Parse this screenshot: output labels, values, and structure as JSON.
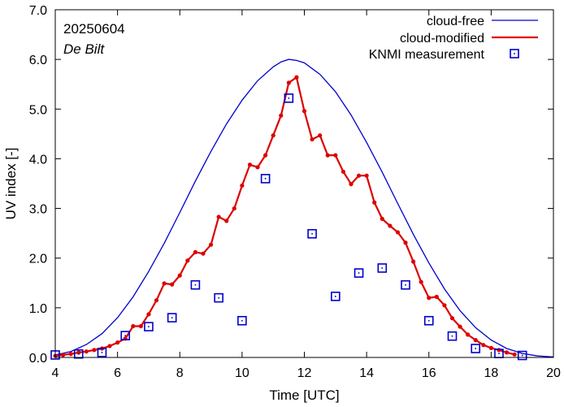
{
  "chart_data": {
    "type": "line",
    "xlabel": "Time  [UTC]",
    "ylabel": "UV index  [-]",
    "xlim": [
      4,
      20
    ],
    "ylim": [
      0,
      7
    ],
    "x_ticks": [
      4,
      6,
      8,
      10,
      12,
      14,
      16,
      18,
      20
    ],
    "y_ticks": [
      0,
      1,
      2,
      3,
      4,
      5,
      6,
      7
    ],
    "x_tick_labels": [
      "4",
      "6",
      "8",
      "10",
      "12",
      "14",
      "16",
      "18",
      "20"
    ],
    "y_tick_labels": [
      "0.0",
      "1.0",
      "2.0",
      "3.0",
      "4.0",
      "5.0",
      "6.0",
      "7.0"
    ],
    "annotations": {
      "date": "20250604",
      "station": "De Bilt"
    },
    "legend_position": "top-right",
    "series": [
      {
        "name": "cloud-free",
        "style": "line",
        "color": "#0000cc",
        "x": [
          4.0,
          4.5,
          5.0,
          5.5,
          6.0,
          6.5,
          7.0,
          7.5,
          8.0,
          8.5,
          9.0,
          9.5,
          10.0,
          10.5,
          11.0,
          11.25,
          11.5,
          11.75,
          12.0,
          12.5,
          13.0,
          13.5,
          14.0,
          14.5,
          15.0,
          15.5,
          16.0,
          16.5,
          17.0,
          17.5,
          18.0,
          18.5,
          19.0,
          19.5,
          20.0
        ],
        "values": [
          0.05,
          0.12,
          0.26,
          0.48,
          0.8,
          1.22,
          1.73,
          2.3,
          2.92,
          3.55,
          4.15,
          4.7,
          5.18,
          5.57,
          5.85,
          5.95,
          6.0,
          5.98,
          5.93,
          5.7,
          5.35,
          4.88,
          4.33,
          3.73,
          3.1,
          2.48,
          1.9,
          1.38,
          0.94,
          0.6,
          0.35,
          0.18,
          0.08,
          0.03,
          0.01
        ]
      },
      {
        "name": "cloud-modified",
        "style": "line-markers",
        "color": "#dd0000",
        "x": [
          4.0,
          4.25,
          4.5,
          4.75,
          5.0,
          5.25,
          5.5,
          5.75,
          6.0,
          6.25,
          6.5,
          6.75,
          7.0,
          7.25,
          7.5,
          7.75,
          8.0,
          8.25,
          8.5,
          8.75,
          9.0,
          9.25,
          9.5,
          9.75,
          10.0,
          10.25,
          10.5,
          10.75,
          11.0,
          11.25,
          11.5,
          11.75,
          12.0,
          12.25,
          12.5,
          12.75,
          13.0,
          13.25,
          13.5,
          13.75,
          14.0,
          14.25,
          14.5,
          14.75,
          15.0,
          15.25,
          15.5,
          15.75,
          16.0,
          16.25,
          16.5,
          16.75,
          17.0,
          17.25,
          17.5,
          17.75,
          18.0,
          18.25,
          18.5,
          18.75
        ],
        "values": [
          0.03,
          0.05,
          0.07,
          0.1,
          0.12,
          0.15,
          0.18,
          0.23,
          0.3,
          0.38,
          0.63,
          0.63,
          0.87,
          1.15,
          1.49,
          1.47,
          1.65,
          1.95,
          2.12,
          2.09,
          2.27,
          2.83,
          2.75,
          3.0,
          3.46,
          3.88,
          3.83,
          4.07,
          4.47,
          4.87,
          5.53,
          5.64,
          4.96,
          4.39,
          4.47,
          4.07,
          4.07,
          3.74,
          3.49,
          3.66,
          3.66,
          3.12,
          2.79,
          2.65,
          2.52,
          2.31,
          1.93,
          1.52,
          1.2,
          1.22,
          1.05,
          0.79,
          0.62,
          0.46,
          0.35,
          0.25,
          0.19,
          0.15,
          0.1,
          0.06
        ]
      },
      {
        "name": "KNMI measurement",
        "style": "markers",
        "color": "#0000cc",
        "x": [
          4.0,
          4.75,
          5.5,
          6.25,
          7.0,
          7.75,
          8.5,
          9.25,
          10.0,
          10.75,
          11.5,
          12.25,
          13.0,
          13.75,
          14.5,
          15.25,
          16.0,
          16.75,
          17.5,
          18.25,
          19.0
        ],
        "values": [
          0.05,
          0.07,
          0.1,
          0.44,
          0.62,
          0.8,
          1.46,
          1.2,
          0.74,
          3.6,
          5.22,
          2.49,
          1.23,
          1.7,
          1.8,
          1.46,
          0.74,
          0.43,
          0.18,
          0.08,
          0.04
        ]
      }
    ]
  }
}
